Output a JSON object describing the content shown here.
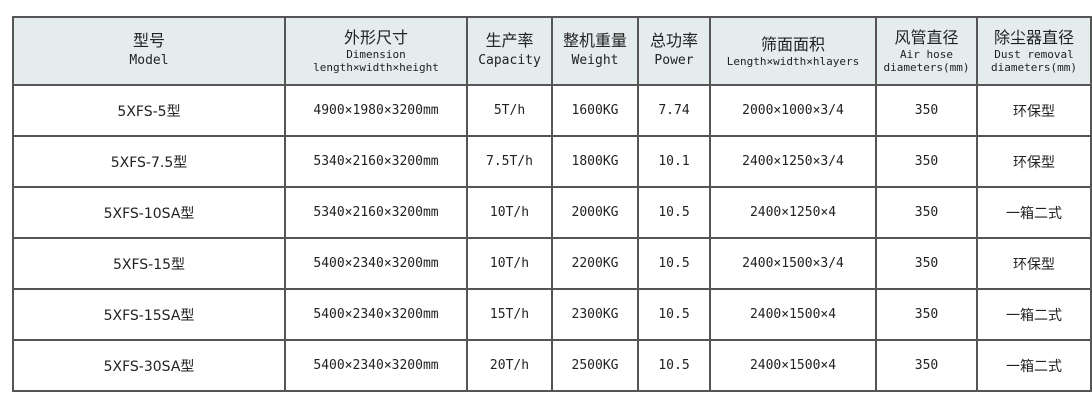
{
  "headers": [
    {
      "zh": "型号",
      "en": "Model"
    },
    {
      "zh": "外形尺寸",
      "en": "Dimension",
      "en2": "length×width×height"
    },
    {
      "zh": "生产率",
      "en": "Capacity"
    },
    {
      "zh": "整机重量",
      "en": "Weight"
    },
    {
      "zh": "总功率",
      "en": "Power"
    },
    {
      "zh": "筛面面积",
      "en": "Length×width×hlayers"
    },
    {
      "zh": "风管直径",
      "en": "Air hose",
      "en2": "diameters(mm)"
    },
    {
      "zh": "除尘器直径",
      "en": "Dust removal",
      "en2": "diameters(mm)"
    }
  ],
  "rows": [
    [
      "5XFS-5型",
      "4900×1980×3200mm",
      "5T/h",
      "1600KG",
      "7.74",
      "2000×1000×3/4",
      "350",
      "环保型"
    ],
    [
      "5XFS-7.5型",
      "5340×2160×3200mm",
      "7.5T/h",
      "1800KG",
      "10.1",
      "2400×1250×3/4",
      "350",
      "环保型"
    ],
    [
      "5XFS-10SA型",
      "5340×2160×3200mm",
      "10T/h",
      "2000KG",
      "10.5",
      "2400×1250×4",
      "350",
      "一箱二式"
    ],
    [
      "5XFS-15型",
      "5400×2340×3200mm",
      "10T/h",
      "2200KG",
      "10.5",
      "2400×1500×3/4",
      "350",
      "环保型"
    ],
    [
      "5XFS-15SA型",
      "5400×2340×3200mm",
      "15T/h",
      "2300KG",
      "10.5",
      "2400×1500×4",
      "350",
      "一箱二式"
    ],
    [
      "5XFS-30SA型",
      "5400×2340×3200mm",
      "20T/h",
      "2500KG",
      "10.5",
      "2400×1500×4",
      "350",
      "一箱二式"
    ]
  ]
}
